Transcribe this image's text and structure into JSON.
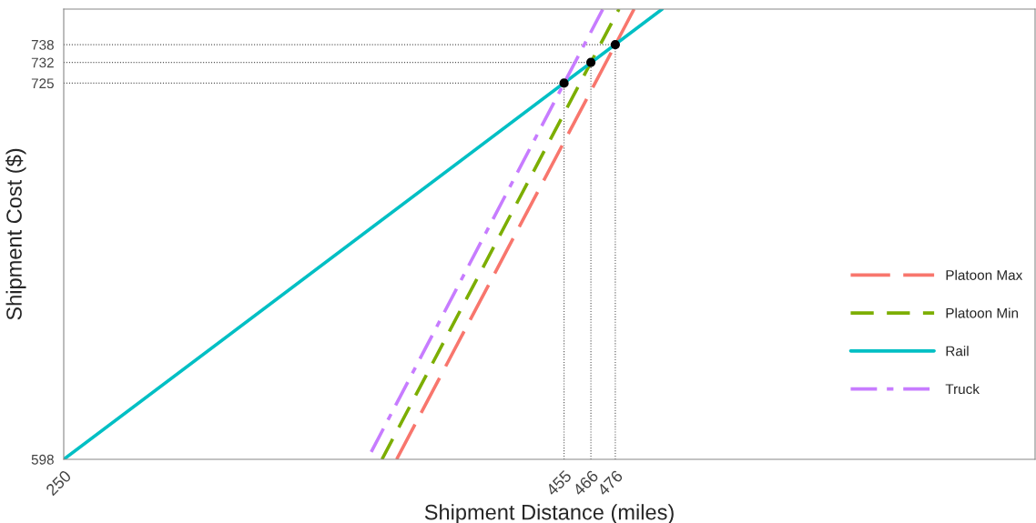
{
  "chart_data": {
    "type": "line",
    "xlabel": "Shipment Distance (miles)",
    "ylabel": "Shipment Cost ($)",
    "xlim": [
      250,
      648
    ],
    "ylim": [
      598,
      750
    ],
    "xticks": [
      250,
      455,
      466,
      476
    ],
    "yticks": [
      598,
      725,
      732,
      738
    ],
    "grid": false,
    "legend": "right",
    "series": [
      {
        "name": "Platoon Max",
        "color": "#f8766d",
        "line_style": "longdash",
        "x": [
          386.4,
          483.7
        ],
        "values": [
          598,
          750
        ]
      },
      {
        "name": "Platoon Min",
        "color": "#7cae00",
        "line_style": "dashed",
        "x": [
          380.4,
          477.5
        ],
        "values": [
          598,
          750
        ]
      },
      {
        "name": "Rail",
        "color": "#00bfc4",
        "line_style": "solid",
        "x": [
          250,
          495.2
        ],
        "values": [
          598,
          750
        ]
      },
      {
        "name": "Truck",
        "color": "#c77cff",
        "line_style": "dashdot",
        "x": [
          376,
          470.9
        ],
        "values": [
          600.5,
          750
        ]
      },
      {
        "type": "scatter",
        "color": "#000000",
        "marker": "circle",
        "x": [
          455,
          466,
          476
        ],
        "values": [
          725,
          732,
          738
        ]
      }
    ],
    "ref_lines": [
      {
        "axis": "x",
        "value": 455,
        "color": "#555555",
        "line_style": "dotted"
      },
      {
        "axis": "x",
        "value": 466,
        "color": "#555555",
        "line_style": "dotted"
      },
      {
        "axis": "x",
        "value": 476,
        "color": "#555555",
        "line_style": "dotted"
      },
      {
        "axis": "y",
        "value": 725,
        "color": "#555555",
        "line_style": "dotted"
      },
      {
        "axis": "y",
        "value": 732,
        "color": "#555555",
        "line_style": "dotted"
      },
      {
        "axis": "y",
        "value": 738,
        "color": "#555555",
        "line_style": "dotted"
      }
    ]
  }
}
